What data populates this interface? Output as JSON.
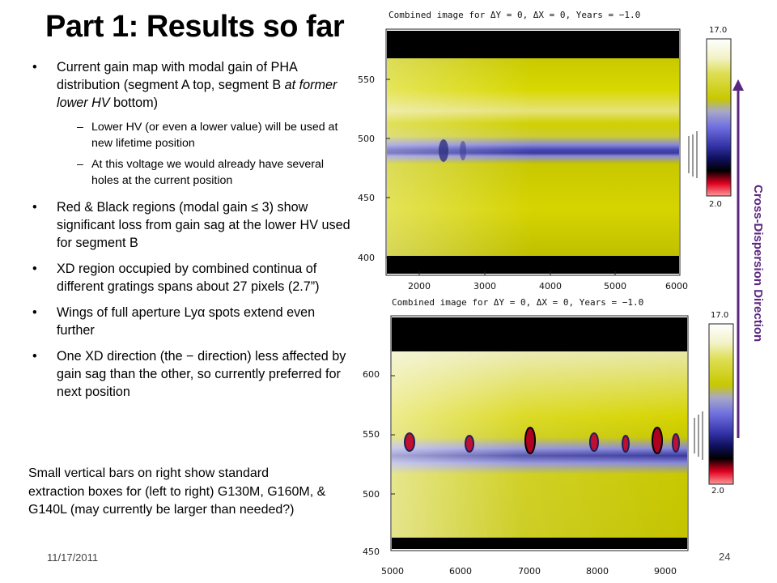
{
  "slide": {
    "title": "Part 1: Results so far",
    "bullets": [
      {
        "dot": "•",
        "pre": "Current gain map with modal gain of PHA distribution (segment A top, segment B ",
        "italic": "at former lower HV",
        "post": " bottom)"
      },
      {
        "dot": "•",
        "text": "Red & Black regions (modal gain ≤ 3) show significant loss from gain sag at the lower HV used for segment B"
      },
      {
        "dot": "•",
        "text": "XD region occupied by combined continua of different gratings spans about 27 pixels (2.7”)"
      },
      {
        "dot": "•",
        "text": "Wings of full aperture Lyα spots extend even further"
      },
      {
        "dot": "•",
        "text": "One XD direction (the − direction) less affected by gain sag than the other, so currently preferred for next position"
      }
    ],
    "subbullets": [
      {
        "dash": "–",
        "text": "Lower HV (or even a lower value) will be used at new lifetime position"
      },
      {
        "dash": "–",
        "text": "At this voltage we would already have several holes at the current position"
      }
    ],
    "note": "Small vertical bars on right show standard extraction boxes for (left to right) G130M, G160M, & G140L (may currently be larger than needed?)",
    "date": "11/17/2011",
    "page_number": "24",
    "side_label": "Cross-Dispersion  Direction",
    "colors": {
      "title": "#000000",
      "arrow": "#5b2680",
      "map_base": "#c8c800",
      "band": "#4a4ab8",
      "hot": "#d00020"
    }
  },
  "plots": [
    {
      "title": "Combined image for ΔY =  0, ΔX = 0, Years = −1.0",
      "y_ticks": [
        "550",
        "500",
        "450",
        "400"
      ],
      "x_ticks": [
        "2000",
        "3000",
        "4000",
        "5000",
        "6000"
      ],
      "colorbar_max": "17.0",
      "colorbar_min": "2.0"
    },
    {
      "title": "Combined image for ΔY =  0, ΔX = 0, Years = −1.0",
      "y_ticks": [
        "600",
        "550",
        "500",
        "450"
      ],
      "x_ticks": [
        "5000",
        "6000",
        "7000",
        "8000",
        "9000"
      ],
      "colorbar_max": "17.0",
      "colorbar_min": "2.0"
    }
  ]
}
